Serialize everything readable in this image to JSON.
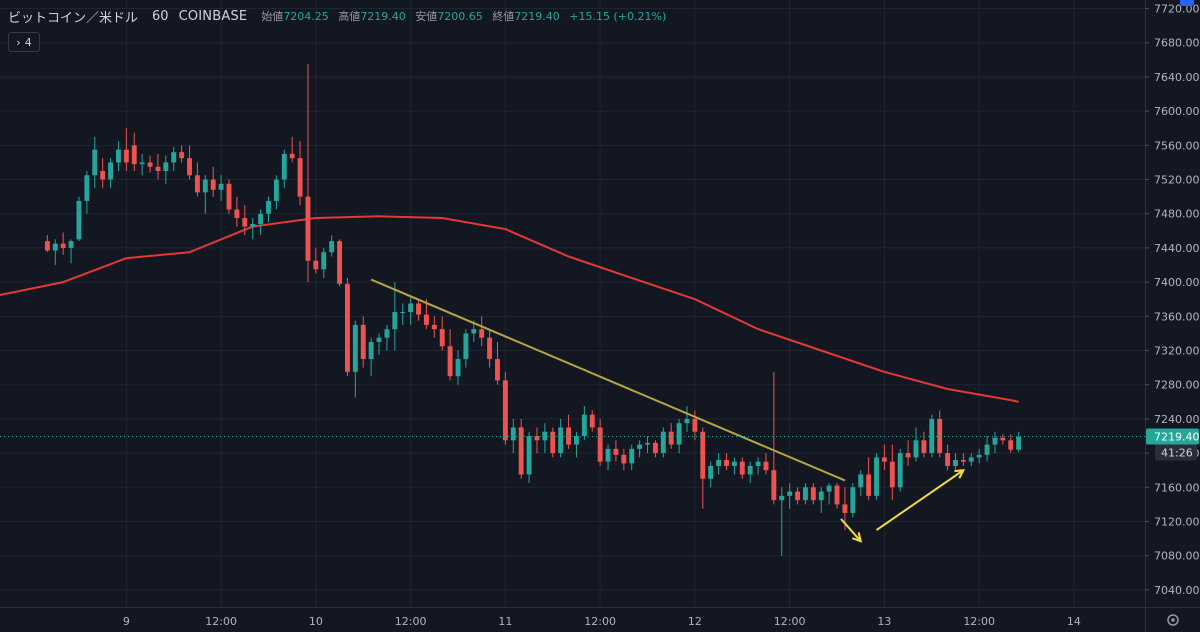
{
  "header": {
    "symbol": "ビットコイン／米ドル",
    "interval": "60",
    "exchange": "COINBASE",
    "open_label": "始値",
    "open": "7204.25",
    "high_label": "高値",
    "high": "7219.40",
    "low_label": "安値",
    "low": "7200.65",
    "close_label": "終値",
    "close": "7219.40",
    "change": "+15.15 (+0.21%)"
  },
  "collapse_button": {
    "label": "4"
  },
  "price_tag": {
    "price": "7219.40",
    "countdown": "41:26",
    "color": "#26a69a"
  },
  "colors": {
    "background": "#131722",
    "grid": "#1f2433",
    "up": "#26a69a",
    "down": "#ef5350",
    "ma": "#e53935",
    "trendline": "#b5a642",
    "arrow": "#f2dd3c",
    "axis_text": "#b2b5be"
  },
  "chart_data": {
    "type": "candlestick",
    "y_axis": {
      "min": 7020,
      "max": 7730,
      "ticks": [
        7040,
        7080,
        7120,
        7160,
        7200,
        7240,
        7280,
        7320,
        7360,
        7400,
        7440,
        7480,
        7520,
        7560,
        7600,
        7640,
        7680,
        7720
      ],
      "tick_labels": [
        "7040.00",
        "7080.00",
        "7120.00",
        "7160.00",
        "7200.00",
        "7240.00",
        "7280.00",
        "7320.00",
        "7360.00",
        "7400.00",
        "7440.00",
        "7480.00",
        "7520.00",
        "7560.00",
        "7600.00",
        "7640.00",
        "7680.00",
        "7720.00"
      ]
    },
    "x_axis": {
      "min": -16,
      "max": 129,
      "ticks": [
        {
          "x": 0,
          "label": "9"
        },
        {
          "x": 12,
          "label": "12:00"
        },
        {
          "x": 24,
          "label": "10"
        },
        {
          "x": 36,
          "label": "12:00"
        },
        {
          "x": 48,
          "label": "11"
        },
        {
          "x": 60,
          "label": "12:00"
        },
        {
          "x": 72,
          "label": "12"
        },
        {
          "x": 84,
          "label": "12:00"
        },
        {
          "x": 96,
          "label": "13"
        },
        {
          "x": 108,
          "label": "12:00"
        },
        {
          "x": 120,
          "label": "14"
        }
      ]
    },
    "candles": [
      [
        -10,
        7448,
        7455,
        7435,
        7437
      ],
      [
        -9,
        7437,
        7450,
        7420,
        7445
      ],
      [
        -8,
        7445,
        7458,
        7432,
        7440
      ],
      [
        -7,
        7440,
        7450,
        7422,
        7448
      ],
      [
        -6,
        7450,
        7500,
        7448,
        7495
      ],
      [
        -5,
        7495,
        7530,
        7480,
        7525
      ],
      [
        -4,
        7525,
        7570,
        7510,
        7555
      ],
      [
        -3,
        7530,
        7545,
        7510,
        7520
      ],
      [
        -2,
        7520,
        7545,
        7510,
        7540
      ],
      [
        -1,
        7540,
        7565,
        7530,
        7555
      ],
      [
        0,
        7555,
        7580,
        7530,
        7540
      ],
      [
        1,
        7560,
        7575,
        7530,
        7538
      ],
      [
        2,
        7538,
        7550,
        7525,
        7540
      ],
      [
        3,
        7540,
        7548,
        7528,
        7535
      ],
      [
        4,
        7535,
        7550,
        7520,
        7530
      ],
      [
        5,
        7530,
        7548,
        7515,
        7540
      ],
      [
        6,
        7540,
        7558,
        7530,
        7552
      ],
      [
        7,
        7552,
        7560,
        7540,
        7545
      ],
      [
        8,
        7545,
        7560,
        7520,
        7525
      ],
      [
        9,
        7525,
        7540,
        7500,
        7505
      ],
      [
        10,
        7505,
        7525,
        7480,
        7520
      ],
      [
        11,
        7520,
        7535,
        7500,
        7508
      ],
      [
        12,
        7508,
        7525,
        7495,
        7515
      ],
      [
        13,
        7515,
        7520,
        7480,
        7485
      ],
      [
        14,
        7485,
        7500,
        7465,
        7475
      ],
      [
        15,
        7475,
        7490,
        7455,
        7465
      ],
      [
        16,
        7465,
        7475,
        7450,
        7468
      ],
      [
        17,
        7468,
        7485,
        7455,
        7480
      ],
      [
        18,
        7480,
        7500,
        7470,
        7495
      ],
      [
        19,
        7495,
        7525,
        7485,
        7520
      ],
      [
        20,
        7520,
        7555,
        7510,
        7550
      ],
      [
        21,
        7550,
        7570,
        7540,
        7545
      ],
      [
        22,
        7545,
        7565,
        7490,
        7500
      ],
      [
        23,
        7500,
        7655,
        7400,
        7425
      ],
      [
        24,
        7425,
        7440,
        7410,
        7415
      ],
      [
        25,
        7415,
        7440,
        7405,
        7435
      ],
      [
        26,
        7435,
        7455,
        7430,
        7448
      ],
      [
        27,
        7448,
        7450,
        7395,
        7398
      ],
      [
        28,
        7398,
        7405,
        7290,
        7295
      ],
      [
        29,
        7295,
        7355,
        7265,
        7350
      ],
      [
        30,
        7350,
        7360,
        7300,
        7310
      ],
      [
        31,
        7310,
        7335,
        7290,
        7330
      ],
      [
        32,
        7330,
        7340,
        7315,
        7335
      ],
      [
        33,
        7335,
        7350,
        7320,
        7345
      ],
      [
        34,
        7345,
        7400,
        7320,
        7365
      ],
      [
        35,
        7365,
        7375,
        7350,
        7365
      ],
      [
        36,
        7365,
        7385,
        7350,
        7375
      ],
      [
        37,
        7375,
        7380,
        7355,
        7362
      ],
      [
        38,
        7362,
        7380,
        7345,
        7350
      ],
      [
        39,
        7350,
        7360,
        7335,
        7345
      ],
      [
        40,
        7345,
        7360,
        7320,
        7325
      ],
      [
        41,
        7325,
        7345,
        7285,
        7290
      ],
      [
        42,
        7290,
        7320,
        7280,
        7310
      ],
      [
        43,
        7310,
        7345,
        7300,
        7340
      ],
      [
        44,
        7340,
        7355,
        7330,
        7345
      ],
      [
        45,
        7345,
        7360,
        7325,
        7335
      ],
      [
        46,
        7335,
        7345,
        7300,
        7310
      ],
      [
        47,
        7310,
        7330,
        7280,
        7285
      ],
      [
        48,
        7285,
        7295,
        7210,
        7215
      ],
      [
        49,
        7215,
        7240,
        7200,
        7230
      ],
      [
        50,
        7230,
        7240,
        7170,
        7175
      ],
      [
        51,
        7175,
        7225,
        7165,
        7220
      ],
      [
        52,
        7220,
        7230,
        7200,
        7215
      ],
      [
        53,
        7215,
        7235,
        7200,
        7225
      ],
      [
        54,
        7225,
        7230,
        7195,
        7200
      ],
      [
        55,
        7200,
        7240,
        7195,
        7230
      ],
      [
        56,
        7230,
        7245,
        7205,
        7210
      ],
      [
        57,
        7210,
        7225,
        7195,
        7220
      ],
      [
        58,
        7220,
        7255,
        7215,
        7245
      ],
      [
        59,
        7245,
        7250,
        7225,
        7230
      ],
      [
        60,
        7230,
        7240,
        7185,
        7190
      ],
      [
        61,
        7190,
        7210,
        7180,
        7205
      ],
      [
        62,
        7205,
        7215,
        7190,
        7198
      ],
      [
        63,
        7198,
        7205,
        7180,
        7188
      ],
      [
        64,
        7188,
        7210,
        7180,
        7205
      ],
      [
        65,
        7205,
        7215,
        7195,
        7210
      ],
      [
        66,
        7210,
        7220,
        7200,
        7212
      ],
      [
        67,
        7212,
        7215,
        7195,
        7200
      ],
      [
        68,
        7200,
        7230,
        7195,
        7225
      ],
      [
        69,
        7225,
        7235,
        7205,
        7210
      ],
      [
        70,
        7210,
        7240,
        7200,
        7235
      ],
      [
        71,
        7235,
        7255,
        7225,
        7240
      ],
      [
        72,
        7240,
        7250,
        7215,
        7225
      ],
      [
        73,
        7225,
        7230,
        7135,
        7170
      ],
      [
        74,
        7170,
        7190,
        7160,
        7185
      ],
      [
        75,
        7185,
        7200,
        7175,
        7192
      ],
      [
        76,
        7192,
        7200,
        7180,
        7185
      ],
      [
        77,
        7185,
        7195,
        7175,
        7190
      ],
      [
        78,
        7190,
        7195,
        7170,
        7175
      ],
      [
        79,
        7175,
        7190,
        7165,
        7185
      ],
      [
        80,
        7185,
        7195,
        7175,
        7190
      ],
      [
        81,
        7190,
        7200,
        7175,
        7180
      ],
      [
        82,
        7180,
        7295,
        7140,
        7145
      ],
      [
        83,
        7145,
        7160,
        7080,
        7150
      ],
      [
        84,
        7150,
        7165,
        7135,
        7155
      ],
      [
        85,
        7155,
        7160,
        7140,
        7145
      ],
      [
        86,
        7145,
        7165,
        7140,
        7160
      ],
      [
        87,
        7160,
        7165,
        7140,
        7145
      ],
      [
        88,
        7145,
        7160,
        7130,
        7155
      ],
      [
        89,
        7155,
        7165,
        7140,
        7162
      ],
      [
        90,
        7162,
        7165,
        7135,
        7140
      ],
      [
        91,
        7140,
        7160,
        7110,
        7130
      ],
      [
        92,
        7130,
        7165,
        7125,
        7160
      ],
      [
        93,
        7160,
        7180,
        7150,
        7175
      ],
      [
        94,
        7175,
        7195,
        7145,
        7150
      ],
      [
        95,
        7150,
        7200,
        7145,
        7195
      ],
      [
        96,
        7195,
        7210,
        7180,
        7190
      ],
      [
        97,
        7190,
        7210,
        7145,
        7160
      ],
      [
        98,
        7160,
        7205,
        7155,
        7200
      ],
      [
        99,
        7200,
        7215,
        7185,
        7195
      ],
      [
        100,
        7195,
        7230,
        7190,
        7215
      ],
      [
        101,
        7215,
        7225,
        7195,
        7200
      ],
      [
        102,
        7200,
        7245,
        7195,
        7240
      ],
      [
        103,
        7240,
        7250,
        7195,
        7200
      ],
      [
        104,
        7200,
        7210,
        7180,
        7185
      ],
      [
        105,
        7185,
        7200,
        7180,
        7192
      ],
      [
        106,
        7192,
        7200,
        7185,
        7190
      ],
      [
        107,
        7190,
        7200,
        7185,
        7195
      ],
      [
        108,
        7195,
        7205,
        7188,
        7198
      ],
      [
        109,
        7198,
        7220,
        7190,
        7210
      ],
      [
        110,
        7210,
        7225,
        7200,
        7218
      ],
      [
        111,
        7218,
        7222,
        7210,
        7215
      ],
      [
        112,
        7215,
        7222,
        7200,
        7204
      ],
      [
        113,
        7204,
        7225,
        7201,
        7219
      ]
    ],
    "moving_average": [
      [
        -16,
        7385
      ],
      [
        -8,
        7400
      ],
      [
        0,
        7428
      ],
      [
        8,
        7435
      ],
      [
        16,
        7465
      ],
      [
        24,
        7475
      ],
      [
        32,
        7477
      ],
      [
        40,
        7475
      ],
      [
        48,
        7462
      ],
      [
        56,
        7430
      ],
      [
        64,
        7405
      ],
      [
        72,
        7380
      ],
      [
        80,
        7345
      ],
      [
        88,
        7320
      ],
      [
        96,
        7295
      ],
      [
        104,
        7275
      ],
      [
        112,
        7262
      ],
      [
        113,
        7260
      ]
    ],
    "trendline": [
      [
        31,
        7403
      ],
      [
        91,
        7168
      ]
    ],
    "arrows": [
      {
        "from": [
          90.5,
          7123
        ],
        "to": [
          93,
          7097
        ]
      },
      {
        "from": [
          95,
          7110
        ],
        "to": [
          106,
          7180
        ]
      }
    ],
    "current_price": 7219.4
  }
}
